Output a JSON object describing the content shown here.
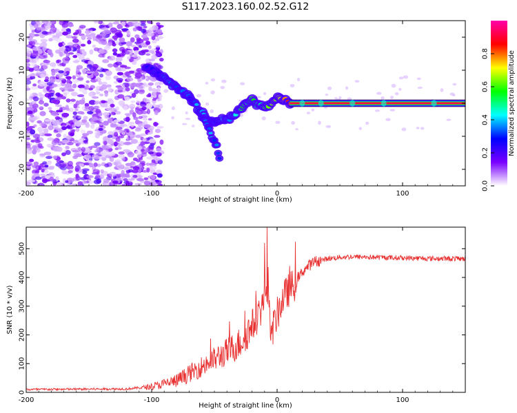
{
  "title": "S117.2023.160.02.52.G12",
  "chart_data": [
    {
      "type": "heatmap",
      "name": "spectrogram",
      "xlabel": "Height of straight line (km)",
      "ylabel": "Frequency (Hz)",
      "xlim": [
        -200,
        150
      ],
      "ylim": [
        -25,
        25
      ],
      "xticks": [
        -200,
        -100,
        0,
        100
      ],
      "yticks": [
        -20,
        -10,
        0,
        10,
        20
      ],
      "colorbar": {
        "label": "Normalized spectral amplitude",
        "range": [
          0.0,
          1.0
        ],
        "ticks": [
          0.0,
          0.2,
          0.4,
          0.6,
          0.8
        ],
        "tick_labels": [
          "0.0",
          "0.2",
          "0.4",
          "0.6",
          "0.8"
        ],
        "colormap": [
          "#ffffff",
          "#7a00ff",
          "#0000ff",
          "#00ffff",
          "#00ff00",
          "#ffff00",
          "#ff0000",
          "#ff00aa"
        ]
      },
      "noise_region_x": [
        -200,
        -100
      ],
      "ridge": {
        "x": [
          -105,
          -95,
          -85,
          -78,
          -70,
          -62,
          -55,
          -50,
          -45,
          -40,
          -35,
          -30,
          -25,
          -20,
          -17,
          -13,
          -8,
          -4,
          0,
          5,
          10,
          20,
          40,
          60,
          80,
          100,
          120,
          150
        ],
        "y": [
          11,
          9,
          6,
          4,
          2,
          -2,
          -5,
          -6,
          -5,
          -5,
          -4,
          -2,
          0,
          1,
          0,
          -1,
          -1,
          0,
          2,
          1,
          0,
          0,
          0,
          0,
          0,
          0,
          0,
          0
        ],
        "amplitude": [
          0.3,
          0.3,
          0.35,
          0.35,
          0.3,
          0.35,
          0.4,
          0.35,
          0.4,
          0.4,
          0.45,
          0.5,
          0.55,
          0.5,
          0.55,
          0.5,
          0.55,
          0.6,
          0.7,
          0.75,
          0.85,
          0.95,
          0.95,
          0.95,
          0.95,
          0.95,
          0.95,
          0.95
        ]
      },
      "branch": {
        "x": [
          -60,
          -55,
          -52,
          -48,
          -46
        ],
        "y": [
          -4,
          -7,
          -10,
          -13,
          -17
        ]
      }
    },
    {
      "type": "line",
      "name": "snr",
      "xlabel": "Height of straight line (km)",
      "ylabel": "SNR (10 * v/v)",
      "xlim": [
        -200,
        150
      ],
      "ylim": [
        0,
        575
      ],
      "xticks": [
        -200,
        -100,
        0,
        100
      ],
      "yticks": [
        0,
        100,
        200,
        300,
        400,
        500
      ],
      "color": "#e83030",
      "series_trend": {
        "x": [
          -200,
          -120,
          -100,
          -80,
          -60,
          -40,
          -30,
          -20,
          -15,
          -10,
          -8,
          -5,
          0,
          5,
          10,
          15,
          20,
          25,
          30,
          40,
          50,
          60,
          80,
          100,
          120,
          150
        ],
        "y": [
          10,
          12,
          20,
          40,
          90,
          140,
          170,
          230,
          270,
          320,
          380,
          200,
          270,
          330,
          360,
          380,
          420,
          440,
          455,
          465,
          470,
          472,
          470,
          468,
          466,
          465
        ]
      },
      "spikes": [
        {
          "x": -8,
          "y": 575
        },
        {
          "x": -10,
          "y": 520
        },
        {
          "x": 10,
          "y": 440
        }
      ]
    }
  ]
}
